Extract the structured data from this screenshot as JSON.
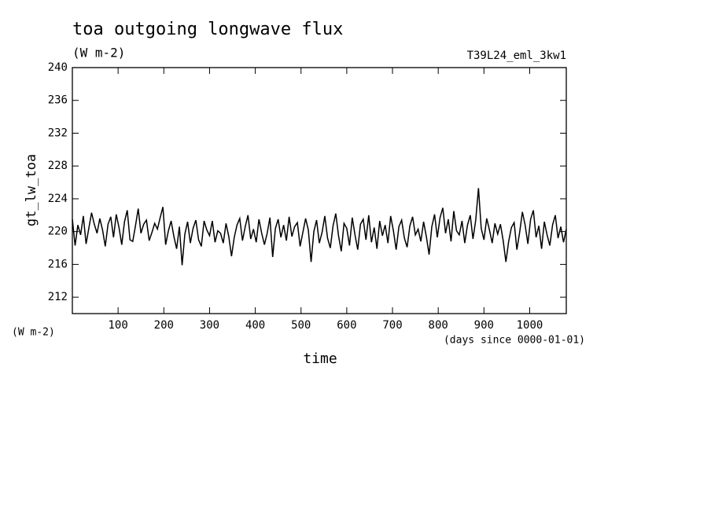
{
  "chart_data": {
    "type": "line",
    "title": "toa outgoing longwave flux",
    "subtitle": "(W m-2)",
    "run_label": "T39L24_eml_3kw1",
    "y_label": "gt_lw_toa",
    "y_unit": "(W m-2)",
    "x_label": "time",
    "x_unit": "(days since 0000-01-01)",
    "color": "#000000",
    "xlim": [
      0,
      1080
    ],
    "ylim": [
      210,
      240
    ],
    "xticks": [
      100,
      200,
      300,
      400,
      500,
      600,
      700,
      800,
      900,
      1000
    ],
    "yticks": [
      212,
      216,
      220,
      224,
      228,
      232,
      236,
      240
    ],
    "x": [
      0,
      6,
      12,
      18,
      24,
      30,
      36,
      42,
      48,
      54,
      60,
      66,
      72,
      78,
      84,
      90,
      96,
      102,
      108,
      114,
      120,
      126,
      132,
      138,
      144,
      150,
      156,
      162,
      168,
      174,
      180,
      186,
      192,
      198,
      204,
      210,
      216,
      222,
      228,
      234,
      240,
      246,
      252,
      258,
      264,
      270,
      276,
      282,
      288,
      294,
      300,
      306,
      312,
      318,
      324,
      330,
      336,
      342,
      348,
      354,
      360,
      366,
      372,
      378,
      384,
      390,
      396,
      402,
      408,
      414,
      420,
      426,
      432,
      438,
      444,
      450,
      456,
      462,
      468,
      474,
      480,
      486,
      492,
      498,
      504,
      510,
      516,
      522,
      528,
      534,
      540,
      546,
      552,
      558,
      564,
      570,
      576,
      582,
      588,
      594,
      600,
      606,
      612,
      618,
      624,
      630,
      636,
      642,
      648,
      654,
      660,
      666,
      672,
      678,
      684,
      690,
      696,
      702,
      708,
      714,
      720,
      726,
      732,
      738,
      744,
      750,
      756,
      762,
      768,
      774,
      780,
      786,
      792,
      798,
      804,
      810,
      816,
      822,
      828,
      834,
      840,
      846,
      852,
      858,
      864,
      870,
      876,
      882,
      888,
      894,
      900,
      906,
      912,
      918,
      924,
      930,
      936,
      942,
      948,
      954,
      960,
      966,
      972,
      978,
      984,
      990,
      996,
      1002,
      1008,
      1014,
      1020,
      1026,
      1032,
      1038,
      1044,
      1050,
      1056,
      1062,
      1068,
      1074,
      1080
    ],
    "values": [
      221.5,
      218.3,
      220.8,
      219.6,
      221.9,
      218.5,
      220.4,
      222.3,
      220.9,
      219.8,
      221.6,
      220.2,
      218.2,
      220.9,
      221.8,
      219.3,
      222.1,
      220.5,
      218.4,
      221.2,
      222.6,
      219.0,
      218.8,
      220.7,
      222.8,
      219.8,
      220.9,
      221.4,
      218.9,
      219.9,
      221.0,
      220.3,
      221.7,
      223.0,
      218.4,
      220.1,
      221.3,
      219.4,
      217.9,
      220.6,
      215.9,
      219.7,
      221.2,
      218.6,
      220.4,
      221.4,
      219.0,
      218.2,
      221.3,
      220.2,
      219.5,
      221.3,
      218.7,
      220.1,
      219.8,
      218.6,
      221.0,
      219.4,
      217.0,
      219.3,
      220.8,
      221.6,
      218.9,
      220.6,
      222.0,
      219.1,
      220.3,
      218.7,
      221.5,
      219.8,
      218.4,
      219.8,
      221.7,
      216.9,
      220.4,
      221.5,
      219.3,
      220.8,
      218.9,
      221.8,
      219.4,
      220.6,
      221.1,
      218.2,
      219.9,
      221.6,
      220.2,
      216.3,
      220.0,
      221.4,
      218.6,
      219.9,
      221.9,
      219.2,
      218.0,
      220.7,
      222.2,
      219.5,
      217.6,
      221.0,
      220.4,
      218.3,
      221.7,
      219.6,
      217.8,
      220.9,
      221.5,
      219.0,
      222.0,
      218.7,
      220.5,
      217.9,
      221.3,
      219.5,
      220.8,
      218.6,
      221.9,
      220.1,
      217.8,
      220.6,
      221.4,
      219.2,
      218.1,
      220.7,
      221.8,
      219.6,
      220.3,
      218.8,
      221.2,
      219.4,
      217.2,
      220.6,
      222.1,
      219.3,
      221.7,
      222.9,
      219.8,
      221.5,
      218.8,
      222.5,
      220.1,
      219.6,
      221.3,
      218.6,
      220.8,
      222.0,
      219.1,
      221.4,
      225.3,
      220.4,
      219.0,
      221.6,
      220.2,
      218.6,
      221.0,
      219.7,
      220.9,
      218.9,
      216.3,
      218.8,
      220.5,
      221.1,
      217.8,
      219.9,
      222.4,
      220.8,
      218.5,
      221.5,
      222.6,
      219.3,
      220.7,
      217.9,
      221.2,
      219.6,
      218.3,
      220.8,
      222.0,
      219.2,
      220.6,
      218.7,
      220.3
    ]
  }
}
